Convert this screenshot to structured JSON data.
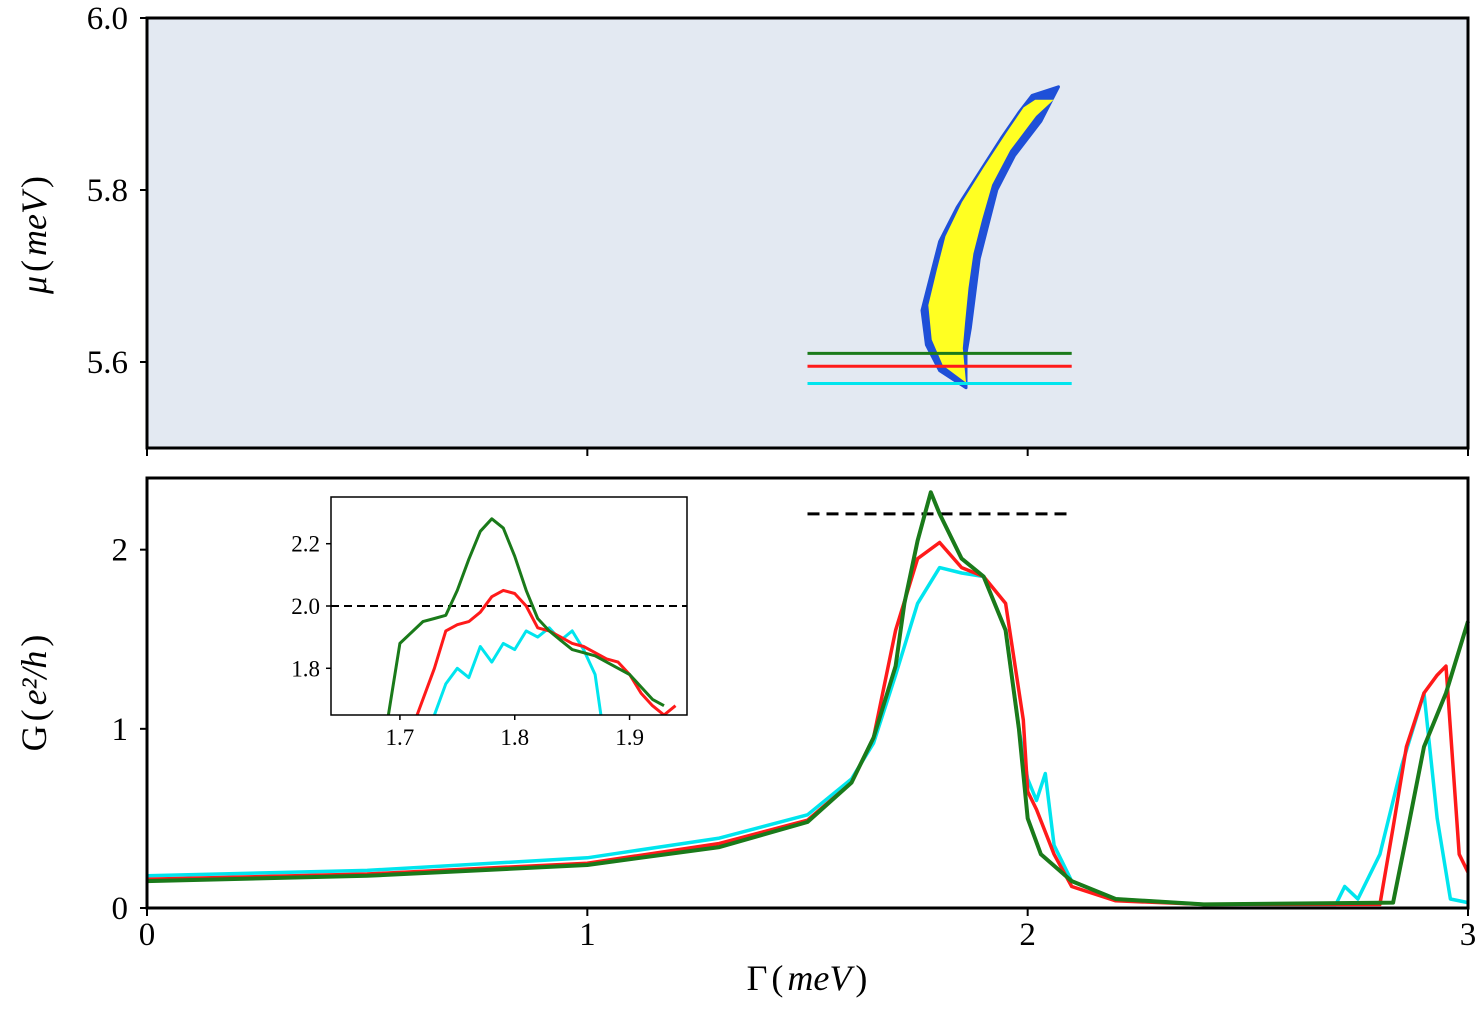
{
  "colors": {
    "map_background": "#e3e9f2",
    "map_blue": "#1f50d8",
    "map_yellow": "#ffff22",
    "cyan": "#00e5ee",
    "red": "#ff1a1a",
    "green": "#1a7a1a",
    "dashed": "#000000"
  },
  "chart_data": [
    {
      "type": "heatmap",
      "panel": "top",
      "xlim": [
        0,
        3
      ],
      "ylim": [
        5.5,
        6.0
      ],
      "yticks": [
        "5.6",
        "5.8",
        "6.0"
      ],
      "ylabel": {
        "symbol": "μ",
        "unit": "meV"
      },
      "icon_regions": [
        "blue-region",
        "yellow-region"
      ],
      "region_outline": {
        "left_edge": [
          [
            1.86,
            5.57
          ],
          [
            1.8,
            5.59
          ],
          [
            1.77,
            5.62
          ],
          [
            1.76,
            5.66
          ],
          [
            1.78,
            5.7
          ],
          [
            1.8,
            5.74
          ],
          [
            1.84,
            5.78
          ],
          [
            1.89,
            5.82
          ],
          [
            1.94,
            5.86
          ],
          [
            1.98,
            5.89
          ],
          [
            2.01,
            5.91
          ]
        ],
        "right_edge": [
          [
            2.07,
            5.92
          ],
          [
            2.03,
            5.88
          ],
          [
            1.97,
            5.84
          ],
          [
            1.93,
            5.8
          ],
          [
            1.91,
            5.76
          ],
          [
            1.89,
            5.72
          ],
          [
            1.88,
            5.68
          ],
          [
            1.87,
            5.64
          ],
          [
            1.86,
            5.61
          ],
          [
            1.86,
            5.57
          ]
        ]
      },
      "cut_lines": [
        {
          "color": "green",
          "mu": 5.61,
          "x_range": [
            1.5,
            2.1
          ]
        },
        {
          "color": "red",
          "mu": 5.595,
          "x_range": [
            1.5,
            2.1
          ]
        },
        {
          "color": "cyan",
          "mu": 5.575,
          "x_range": [
            1.5,
            2.1
          ]
        }
      ]
    },
    {
      "type": "line",
      "panel": "bottom",
      "xlim": [
        0,
        3
      ],
      "ylim": [
        0,
        2.4
      ],
      "xticks": [
        "0",
        "1",
        "2",
        "3"
      ],
      "yticks": [
        "0",
        "1",
        "2"
      ],
      "xlabel": {
        "symbol": "Γ",
        "unit": "meV"
      },
      "ylabel": {
        "symbol": "G",
        "unit": "e²/h"
      },
      "reference_line": {
        "y": 2.2,
        "x_range": [
          1.5,
          2.1
        ],
        "style": "dashed"
      },
      "series": [
        {
          "color": "cyan",
          "x": [
            0,
            0.5,
            1.0,
            1.3,
            1.5,
            1.6,
            1.65,
            1.7,
            1.75,
            1.8,
            1.85,
            1.9,
            1.95,
            1.98,
            2.0,
            2.02,
            2.04,
            2.06,
            2.1,
            2.2,
            2.4,
            2.7,
            2.72,
            2.75,
            2.8,
            2.85,
            2.9,
            2.93,
            2.96,
            3.0
          ],
          "y": [
            0.18,
            0.21,
            0.28,
            0.39,
            0.52,
            0.72,
            0.92,
            1.3,
            1.7,
            1.9,
            1.87,
            1.85,
            1.55,
            1.0,
            0.72,
            0.6,
            0.75,
            0.35,
            0.15,
            0.05,
            0.02,
            0.02,
            0.12,
            0.05,
            0.3,
            0.8,
            1.2,
            0.5,
            0.05,
            0.03
          ]
        },
        {
          "color": "red",
          "x": [
            0,
            0.5,
            1.0,
            1.3,
            1.5,
            1.6,
            1.65,
            1.7,
            1.75,
            1.8,
            1.85,
            1.9,
            1.95,
            1.99,
            2.0,
            2.02,
            2.06,
            2.1,
            2.2,
            2.4,
            2.8,
            2.83,
            2.86,
            2.9,
            2.93,
            2.95,
            2.98,
            3.0
          ],
          "y": [
            0.16,
            0.19,
            0.25,
            0.36,
            0.49,
            0.7,
            0.95,
            1.55,
            1.95,
            2.04,
            1.9,
            1.85,
            1.7,
            1.05,
            0.65,
            0.55,
            0.3,
            0.12,
            0.04,
            0.02,
            0.02,
            0.45,
            0.9,
            1.2,
            1.3,
            1.35,
            0.3,
            0.2
          ]
        },
        {
          "color": "green",
          "x": [
            0,
            0.5,
            1.0,
            1.3,
            1.5,
            1.6,
            1.65,
            1.7,
            1.72,
            1.75,
            1.78,
            1.8,
            1.85,
            1.9,
            1.95,
            1.98,
            2.0,
            2.03,
            2.1,
            2.2,
            2.4,
            2.83,
            2.86,
            2.9,
            2.95,
            3.0
          ],
          "y": [
            0.15,
            0.18,
            0.24,
            0.34,
            0.48,
            0.7,
            0.95,
            1.35,
            1.7,
            2.05,
            2.32,
            2.2,
            1.95,
            1.85,
            1.55,
            1.0,
            0.5,
            0.3,
            0.15,
            0.05,
            0.02,
            0.03,
            0.4,
            0.9,
            1.2,
            1.6
          ]
        }
      ],
      "inset": {
        "xlim": [
          1.64,
          1.95
        ],
        "ylim": [
          1.65,
          2.35
        ],
        "xticks": [
          "1.7",
          "1.8",
          "1.9"
        ],
        "yticks": [
          "1.8",
          "2.0",
          "2.2"
        ],
        "reference_line": {
          "y": 2.0,
          "style": "dashed"
        },
        "series": [
          {
            "color": "cyan",
            "x": [
              1.73,
              1.74,
              1.75,
              1.76,
              1.77,
              1.78,
              1.79,
              1.8,
              1.81,
              1.82,
              1.83,
              1.84,
              1.85,
              1.86,
              1.87,
              1.875
            ],
            "y": [
              1.65,
              1.75,
              1.8,
              1.77,
              1.87,
              1.82,
              1.88,
              1.86,
              1.92,
              1.9,
              1.93,
              1.89,
              1.92,
              1.86,
              1.78,
              1.65
            ]
          },
          {
            "color": "red",
            "x": [
              1.715,
              1.73,
              1.74,
              1.75,
              1.76,
              1.77,
              1.78,
              1.79,
              1.8,
              1.81,
              1.82,
              1.83,
              1.84,
              1.85,
              1.86,
              1.87,
              1.88,
              1.89,
              1.9,
              1.91,
              1.92,
              1.93,
              1.94
            ],
            "y": [
              1.65,
              1.8,
              1.92,
              1.94,
              1.95,
              1.98,
              2.03,
              2.05,
              2.04,
              2.0,
              1.93,
              1.92,
              1.9,
              1.88,
              1.87,
              1.85,
              1.83,
              1.82,
              1.78,
              1.72,
              1.68,
              1.65,
              1.68
            ]
          },
          {
            "color": "green",
            "x": [
              1.69,
              1.7,
              1.72,
              1.73,
              1.74,
              1.75,
              1.76,
              1.77,
              1.78,
              1.79,
              1.8,
              1.81,
              1.82,
              1.83,
              1.84,
              1.85,
              1.86,
              1.87,
              1.88,
              1.89,
              1.9,
              1.91,
              1.92,
              1.93
            ],
            "y": [
              1.65,
              1.88,
              1.95,
              1.96,
              1.97,
              2.05,
              2.15,
              2.24,
              2.28,
              2.25,
              2.16,
              2.05,
              1.96,
              1.92,
              1.89,
              1.86,
              1.85,
              1.84,
              1.82,
              1.8,
              1.78,
              1.74,
              1.7,
              1.68
            ]
          }
        ]
      }
    }
  ]
}
